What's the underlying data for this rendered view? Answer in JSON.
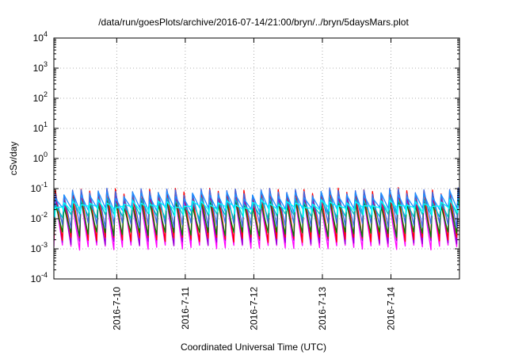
{
  "chart_data": {
    "type": "line",
    "title": "/data/run/goesPlots/archive/2016-07-14/21:00/bryn/../bryn/5daysMars.plot",
    "xlabel": "Coordinated Universal Time (UTC)",
    "ylabel": "cSv/day",
    "yscale": "log",
    "ylim": [
      0.0001,
      10000
    ],
    "y_ticks": [
      {
        "base": "10",
        "exp": "-4",
        "value": 0.0001
      },
      {
        "base": "10",
        "exp": "-3",
        "value": 0.001
      },
      {
        "base": "10",
        "exp": "-2",
        "value": 0.01
      },
      {
        "base": "10",
        "exp": "-1",
        "value": 0.1
      },
      {
        "base": "10",
        "exp": "0",
        "value": 1
      },
      {
        "base": "10",
        "exp": "1",
        "value": 10
      },
      {
        "base": "10",
        "exp": "2",
        "value": 100
      },
      {
        "base": "10",
        "exp": "3",
        "value": 1000
      },
      {
        "base": "10",
        "exp": "4",
        "value": 10000
      }
    ],
    "xlim": [
      "2016-07-09T02:00",
      "2016-07-14T23:59"
    ],
    "x_ticks": [
      "2016-7-10",
      "2016-7-11",
      "2016-7-12",
      "2016-7-13",
      "2016-7-14"
    ],
    "x_tick_dates": [
      "2016-07-10T00:00",
      "2016-07-11T00:00",
      "2016-07-12T00:00",
      "2016-07-13T00:00",
      "2016-07-14T00:00"
    ],
    "grid": true,
    "sawtooth_period_hours": 3,
    "series": [
      {
        "color": "#ff00ff",
        "peak": 0.05,
        "trough": 0.0011
      },
      {
        "color": "#9400d3",
        "peak": 0.06,
        "trough": 0.0016
      },
      {
        "color": "#ff0000",
        "peak": 0.1,
        "trough": 0.002
      },
      {
        "color": "#008000",
        "peak": 0.04,
        "trough": 0.003
      },
      {
        "color": "#4169e1",
        "peak": 0.1,
        "trough": 0.006
      },
      {
        "color": "#00bfbf",
        "peak": 0.05,
        "trough": 0.012
      },
      {
        "color": "#1e90ff",
        "peak": 0.08,
        "trough": 0.02
      },
      {
        "color": "#00ffff",
        "peak": 0.04,
        "trough": 0.022
      }
    ]
  }
}
